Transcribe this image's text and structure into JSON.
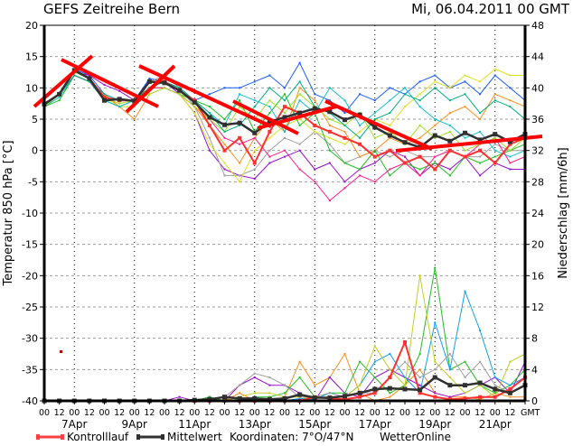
{
  "header": {
    "title": "GEFS  Zeitreihe  Bern",
    "date": "Mi, 06.04.2011  00  GMT"
  },
  "legend": {
    "control_label": "Kontrolllauf",
    "mean_label": "Mittelwert",
    "coords": "Koordinaten:  7°O/47°N",
    "source": "WetterOnline"
  },
  "chart_data": {
    "type": "line",
    "title": "GEFS Zeitreihe Bern",
    "ylabel": "Temperatur 850 hPa [°C]",
    "y2label": "Niederschlag [mm/6h]",
    "ylim": [
      -40,
      20
    ],
    "y2lim": [
      0,
      48
    ],
    "yticks": [
      "20",
      "15",
      "10",
      "5",
      "0",
      "-5",
      "-10",
      "-15",
      "-20",
      "-25",
      "-30",
      "-35",
      "-40"
    ],
    "y2ticks": [
      "48",
      "44",
      "40",
      "36",
      "32",
      "28",
      "24",
      "20",
      "16",
      "12",
      "8",
      "4",
      "0"
    ],
    "xtick_labels": [
      "00",
      "12",
      "00",
      "12",
      "00",
      "12",
      "00",
      "12",
      "00",
      "12",
      "00",
      "12",
      "00",
      "12",
      "00",
      "12",
      "00",
      "12",
      "00",
      "12",
      "00",
      "12",
      "00",
      "12",
      "00",
      "12",
      "00",
      "12",
      "00",
      "12",
      "00",
      "12",
      "GMT"
    ],
    "date_labels": [
      {
        "label": "7Apr",
        "index": 2
      },
      {
        "label": "9Apr",
        "index": 6
      },
      {
        "label": "11Apr",
        "index": 10
      },
      {
        "label": "13Apr",
        "index": 14
      },
      {
        "label": "15Apr",
        "index": 18
      },
      {
        "label": "17Apr",
        "index": 22
      },
      {
        "label": "19Apr",
        "index": 26
      },
      {
        "label": "21Apr",
        "index": 30
      }
    ],
    "x_step": "12h from 06.04.2011 00 GMT",
    "grid": true,
    "legend_position": "bottom",
    "colors": {
      "mean": "#303030",
      "control": "#ff3030",
      "annotation": "#ff0000",
      "grid": "#a0a0a0"
    },
    "temperature": {
      "mean": [
        7.4,
        9.0,
        12.8,
        11.5,
        8.0,
        8.2,
        7.9,
        11.0,
        10.8,
        9.6,
        7.7,
        5.3,
        4.1,
        4.4,
        2.8,
        4.6,
        5.3,
        6.0,
        6.7,
        6.2,
        4.9,
        5.7,
        3.7,
        2.4,
        1.3,
        0.5,
        2.4,
        1.5,
        2.8,
        1.7,
        2.6,
        1.4,
        2.6
      ],
      "control": [
        7.5,
        9,
        12.8,
        11.5,
        8.5,
        8,
        8,
        11,
        11,
        9.5,
        8,
        4,
        0,
        2,
        -2,
        3,
        7,
        6,
        4,
        3,
        2,
        1,
        -1,
        0,
        -2,
        -1,
        -3,
        0,
        -1,
        0,
        -2,
        1,
        2
      ],
      "members": [
        {
          "color": "#1a5cff",
          "values": [
            7.5,
            9,
            13,
            12,
            9,
            8,
            8,
            11.5,
            11,
            10,
            8,
            9,
            10,
            10,
            11,
            12,
            10,
            14,
            9,
            8,
            6,
            9,
            8,
            10,
            9,
            11,
            12,
            10,
            11,
            9,
            12,
            10,
            8
          ]
        },
        {
          "color": "#9a10d0",
          "values": [
            7.5,
            9,
            12.5,
            12,
            10.5,
            9.5,
            8,
            11,
            11,
            9,
            6,
            0,
            -3,
            -4,
            -4.5,
            -2,
            -1,
            0,
            -3,
            -2,
            -5,
            -3,
            -2,
            0,
            -1,
            -4,
            -2,
            -3,
            -1,
            -4,
            -2,
            -3,
            -3
          ]
        },
        {
          "color": "#a0a0a0",
          "values": [
            7,
            9,
            12,
            11,
            8,
            7,
            7,
            11,
            12,
            10,
            7,
            2,
            -4,
            -4,
            -3,
            0,
            2,
            1,
            3,
            1,
            -2,
            -1,
            0,
            -1,
            0,
            -1,
            -1,
            0,
            -1,
            -1,
            1,
            0,
            0
          ]
        },
        {
          "color": "#e0e020",
          "values": [
            7,
            8.5,
            12,
            11,
            8.5,
            7,
            7,
            10,
            10,
            9,
            6,
            1,
            -2,
            -5,
            0,
            2,
            4,
            5,
            3,
            2,
            1,
            3,
            5,
            4,
            7,
            9,
            11,
            10,
            12,
            11,
            13,
            12,
            12
          ]
        },
        {
          "color": "#ff8c1a",
          "values": [
            7,
            9,
            12,
            11,
            9,
            7,
            5,
            9,
            10,
            9,
            7,
            4,
            1,
            -2,
            2,
            5,
            3,
            10,
            8,
            4,
            3,
            -1,
            0,
            2,
            1,
            2,
            4,
            6,
            7,
            5,
            9,
            8,
            7
          ]
        },
        {
          "color": "#20c020",
          "values": [
            7,
            8,
            12,
            11,
            8,
            7,
            8,
            10,
            10,
            9,
            8,
            7,
            5,
            8,
            3,
            6,
            9,
            4,
            6,
            0,
            -2,
            -3,
            0,
            -4,
            -2,
            -3,
            -2,
            -4,
            -1,
            -2,
            -1,
            0,
            1
          ]
        },
        {
          "color": "#10c0d0",
          "values": [
            7,
            8.5,
            12,
            11,
            8,
            7,
            8,
            10,
            11,
            10,
            8,
            6,
            4,
            9,
            8,
            7,
            3,
            8,
            6,
            10,
            8,
            4,
            6,
            8,
            10,
            7,
            5,
            4,
            2,
            3,
            0,
            -1,
            0
          ]
        },
        {
          "color": "#ff1a8c",
          "values": [
            7,
            9,
            12,
            11,
            8.5,
            8,
            8,
            10,
            10,
            9,
            7,
            5,
            2,
            1,
            2,
            -1,
            0,
            -3,
            -5,
            -8,
            -6,
            -4,
            -5,
            -3,
            -2,
            -4,
            -1,
            0,
            -1,
            1,
            2,
            -2,
            -1
          ]
        },
        {
          "color": "#a0e020",
          "values": [
            7,
            9,
            12.5,
            11.5,
            8.5,
            7.5,
            8,
            9,
            10,
            9,
            7,
            5,
            3,
            7,
            5,
            8,
            6,
            9,
            7,
            5,
            4,
            6,
            2,
            3,
            1,
            4,
            2,
            3,
            0,
            1,
            2,
            0,
            2
          ]
        },
        {
          "color": "#00b080",
          "values": [
            7.5,
            9,
            12,
            11,
            9,
            8,
            8,
            10,
            11,
            10,
            8,
            6,
            3,
            4,
            7,
            10,
            8,
            11,
            7,
            6,
            4,
            2,
            5,
            6,
            9,
            8,
            10,
            8,
            9,
            6,
            8,
            7,
            5
          ]
        }
      ]
    },
    "precipitation": {
      "mean": [
        0,
        0,
        0,
        0,
        0,
        0,
        0,
        0,
        0,
        0,
        0.1,
        0.2,
        0.5,
        0.3,
        0.3,
        0.2,
        0.3,
        0.8,
        0.4,
        0.4,
        0.6,
        1.0,
        1.5,
        1.6,
        1.5,
        1.4,
        3.0,
        2.0,
        2.0,
        2.3,
        1.5,
        1.0,
        2.0
      ],
      "control": [
        0,
        0,
        0,
        0,
        0,
        0,
        0,
        0,
        0,
        0,
        0,
        0,
        0,
        0,
        0,
        0,
        0,
        0,
        0.5,
        0.3,
        0.2,
        0.5,
        1.0,
        3.0,
        7.5,
        1.0,
        0.5,
        0.2,
        0.3,
        0.5,
        0.5,
        1.5,
        3.0
      ],
      "members": [
        {
          "color": "#ff8c1a",
          "values": [
            0,
            0,
            0,
            0,
            0,
            0,
            0,
            0,
            0,
            0,
            0,
            0,
            0,
            1,
            0,
            0,
            0.5,
            5,
            2,
            3,
            6,
            1,
            0,
            0.5,
            2,
            4,
            1,
            0.5,
            0.5,
            0.2,
            1,
            0.5,
            0.5
          ]
        },
        {
          "color": "#9a10d0",
          "values": [
            0,
            0,
            0,
            0,
            0,
            0,
            0,
            0,
            0,
            0.5,
            0,
            0.5,
            0,
            2,
            3,
            2,
            2,
            1,
            0,
            3,
            1,
            0.5,
            3,
            4,
            3,
            2,
            1,
            0.5,
            1,
            2,
            3,
            1,
            5
          ]
        },
        {
          "color": "#20c020",
          "values": [
            0,
            0,
            0,
            0,
            0,
            0,
            0,
            0,
            0,
            0,
            0,
            0.5,
            0,
            0,
            0.5,
            0.5,
            1,
            3,
            0.5,
            1,
            1,
            5,
            3,
            1,
            2,
            6,
            17,
            4,
            5,
            2,
            1,
            2,
            4
          ]
        },
        {
          "color": "#10a0f0",
          "values": [
            0,
            0,
            0,
            0,
            0,
            0,
            0,
            0,
            0,
            0,
            0,
            0,
            0,
            0,
            0.5,
            0,
            0,
            0.3,
            0.2,
            1,
            0.5,
            2,
            5,
            6,
            3,
            1,
            10,
            4,
            14,
            9,
            3,
            2,
            3
          ]
        },
        {
          "color": "#c0d020",
          "values": [
            0,
            0,
            0,
            0,
            0,
            0,
            0,
            0,
            0,
            0,
            0,
            0,
            0,
            0.5,
            1,
            1,
            0.5,
            0.5,
            0.3,
            0.5,
            0.5,
            2,
            7,
            4,
            2,
            16,
            5,
            3,
            1,
            2,
            0.5,
            5,
            6
          ]
        },
        {
          "color": "#a0a0a0",
          "values": [
            0,
            0,
            0,
            0,
            0,
            0,
            0,
            0,
            0,
            0,
            0,
            0,
            0.5,
            2,
            3.5,
            3,
            2,
            0.5,
            0.5,
            1,
            0.5,
            1,
            1,
            3,
            5,
            3,
            4,
            6,
            3,
            5,
            2,
            1,
            2
          ]
        }
      ]
    }
  }
}
